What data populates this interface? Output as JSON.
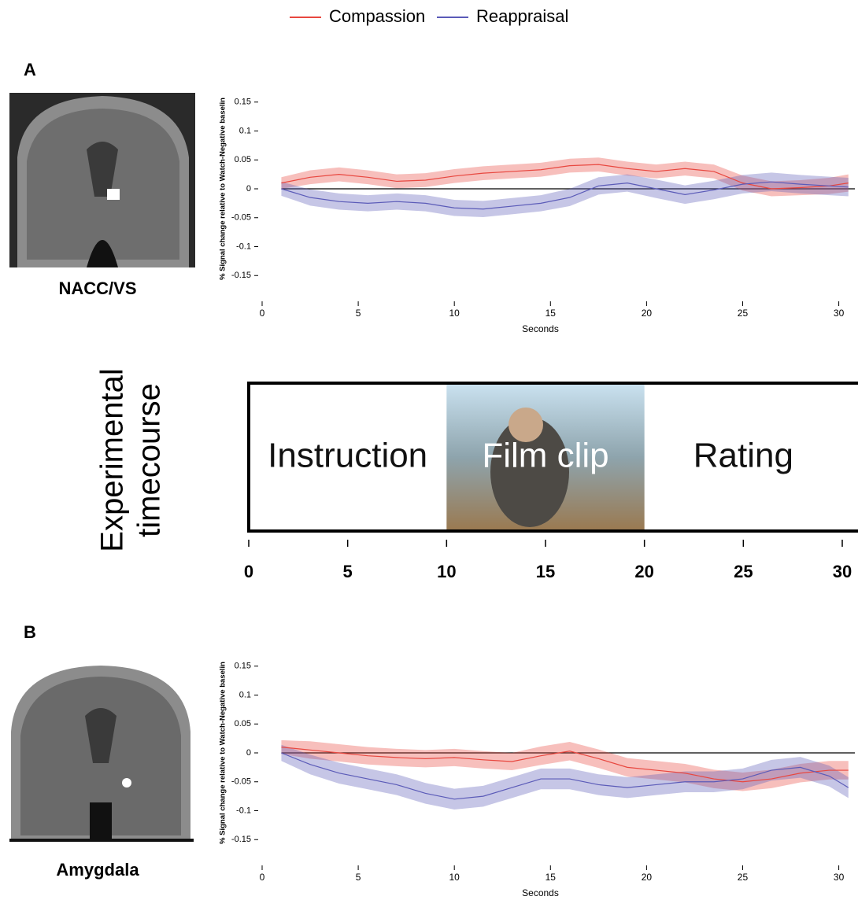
{
  "chart_data": [
    {
      "type": "line",
      "xlabel": "Seconds",
      "ylabel": "% Signal change relative to Watch-Negative baselin",
      "x": [
        1,
        2.5,
        4,
        5.5,
        7,
        8.5,
        10,
        11.5,
        13,
        14.5,
        16,
        17.5,
        19,
        20.5,
        22,
        23.5,
        25,
        26.5,
        28,
        29.5,
        30.5
      ],
      "xlim": [
        0,
        31
      ],
      "xticks": [
        0,
        5,
        10,
        15,
        20,
        25,
        30
      ],
      "ylim": [
        -0.2,
        0.2
      ],
      "yticks": [
        -0.15,
        -0.1,
        -0.05,
        0,
        0.05,
        0.1,
        0.15
      ],
      "series": [
        {
          "name": "Compassion",
          "color": "#e8473f",
          "values": [
            0.01,
            0.02,
            0.025,
            0.02,
            0.013,
            0.015,
            0.022,
            0.027,
            0.03,
            0.033,
            0.04,
            0.042,
            0.035,
            0.03,
            0.035,
            0.03,
            0.01,
            0.0,
            0.002,
            0.005,
            0.01
          ],
          "error": [
            0.01,
            0.012,
            0.012,
            0.012,
            0.012,
            0.012,
            0.012,
            0.012,
            0.012,
            0.012,
            0.012,
            0.012,
            0.012,
            0.012,
            0.012,
            0.012,
            0.013,
            0.013,
            0.013,
            0.014,
            0.015
          ]
        },
        {
          "name": "Reappraisal",
          "color": "#5b5bb8",
          "values": [
            0.0,
            -0.015,
            -0.022,
            -0.025,
            -0.022,
            -0.025,
            -0.033,
            -0.035,
            -0.03,
            -0.025,
            -0.015,
            0.005,
            0.01,
            0.0,
            -0.01,
            -0.002,
            0.008,
            0.012,
            0.008,
            0.005,
            0.003
          ],
          "error": [
            0.012,
            0.014,
            0.014,
            0.014,
            0.014,
            0.014,
            0.014,
            0.014,
            0.014,
            0.014,
            0.015,
            0.015,
            0.015,
            0.016,
            0.016,
            0.016,
            0.016,
            0.016,
            0.016,
            0.016,
            0.016
          ]
        }
      ]
    },
    {
      "type": "line",
      "xlabel": "Seconds",
      "ylabel": "% Signal change relative to Watch-Negative baselin",
      "x": [
        1,
        2.5,
        4,
        5.5,
        7,
        8.5,
        10,
        11.5,
        13,
        14.5,
        16,
        17.5,
        19,
        20.5,
        22,
        23.5,
        25,
        26.5,
        28,
        29.5,
        30.5
      ],
      "xlim": [
        0,
        31
      ],
      "xticks": [
        0,
        5,
        10,
        15,
        20,
        25,
        30
      ],
      "ylim": [
        -0.2,
        0.2
      ],
      "yticks": [
        -0.15,
        -0.1,
        -0.05,
        0,
        0.05,
        0.1,
        0.15
      ],
      "series": [
        {
          "name": "Compassion",
          "color": "#e8473f",
          "values": [
            0.01,
            0.005,
            0.0,
            -0.005,
            -0.008,
            -0.01,
            -0.008,
            -0.012,
            -0.015,
            -0.005,
            0.003,
            -0.01,
            -0.025,
            -0.03,
            -0.035,
            -0.045,
            -0.05,
            -0.045,
            -0.035,
            -0.03,
            -0.03
          ],
          "error": [
            0.012,
            0.015,
            0.015,
            0.015,
            0.015,
            0.015,
            0.015,
            0.015,
            0.015,
            0.016,
            0.016,
            0.016,
            0.016,
            0.016,
            0.016,
            0.016,
            0.016,
            0.016,
            0.016,
            0.016,
            0.016
          ]
        },
        {
          "name": "Reappraisal",
          "color": "#5b5bb8",
          "values": [
            0.0,
            -0.02,
            -0.035,
            -0.045,
            -0.055,
            -0.07,
            -0.08,
            -0.075,
            -0.06,
            -0.045,
            -0.045,
            -0.055,
            -0.06,
            -0.055,
            -0.05,
            -0.05,
            -0.045,
            -0.03,
            -0.025,
            -0.04,
            -0.06
          ],
          "error": [
            0.014,
            0.017,
            0.018,
            0.018,
            0.018,
            0.018,
            0.018,
            0.018,
            0.018,
            0.018,
            0.018,
            0.018,
            0.018,
            0.018,
            0.018,
            0.018,
            0.018,
            0.018,
            0.018,
            0.018,
            0.018
          ]
        }
      ]
    }
  ],
  "panels": [
    {
      "label": "A",
      "region": "NACC/VS"
    },
    {
      "label": "B",
      "region": "Amygdala"
    }
  ],
  "timecourse": {
    "title_lines": [
      "Experimental",
      "timecourse"
    ],
    "xlim": [
      0,
      30
    ],
    "xticks": [
      0,
      5,
      10,
      15,
      20,
      25,
      30
    ],
    "segments": [
      {
        "label": "Instruction",
        "start": 0,
        "end": 10
      },
      {
        "label": "Film clip",
        "start": 10,
        "end": 20
      },
      {
        "label": "Rating",
        "start": 20,
        "end": 30
      }
    ]
  }
}
